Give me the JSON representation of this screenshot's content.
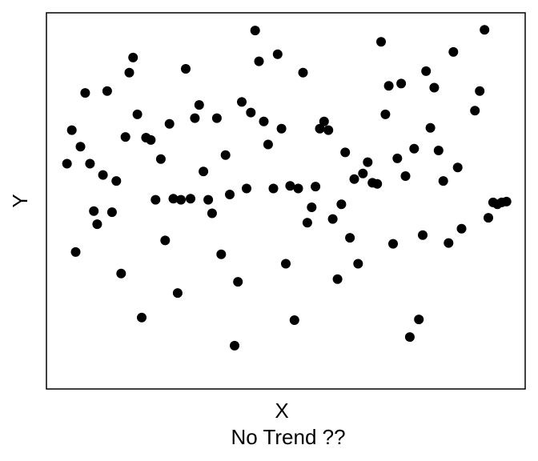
{
  "chart_data": {
    "type": "scatter",
    "title": "",
    "xlabel": "X",
    "ylabel": "Y",
    "caption": "No Trend ??",
    "xlim": [
      0,
      100
    ],
    "ylim": [
      0,
      100
    ],
    "grid": false,
    "legend": "none",
    "point_color": "#000000",
    "axes_color": "#000000",
    "series": [
      {
        "name": "points",
        "points": [
          {
            "x": 4.3,
            "y": 59.9
          },
          {
            "x": 5.3,
            "y": 68.8
          },
          {
            "x": 6.1,
            "y": 36.4
          },
          {
            "x": 7.1,
            "y": 64.4
          },
          {
            "x": 8.1,
            "y": 78.7
          },
          {
            "x": 9.1,
            "y": 59.9
          },
          {
            "x": 9.9,
            "y": 47.3
          },
          {
            "x": 10.6,
            "y": 43.8
          },
          {
            "x": 11.8,
            "y": 56.9
          },
          {
            "x": 12.7,
            "y": 79.2
          },
          {
            "x": 13.7,
            "y": 47.0
          },
          {
            "x": 14.6,
            "y": 55.3
          },
          {
            "x": 15.6,
            "y": 30.7
          },
          {
            "x": 16.5,
            "y": 67.0
          },
          {
            "x": 17.3,
            "y": 84.1
          },
          {
            "x": 18.1,
            "y": 88.1
          },
          {
            "x": 19.0,
            "y": 73.0
          },
          {
            "x": 19.9,
            "y": 19.0
          },
          {
            "x": 20.8,
            "y": 66.8
          },
          {
            "x": 21.8,
            "y": 66.2
          },
          {
            "x": 22.8,
            "y": 50.3
          },
          {
            "x": 23.9,
            "y": 61.1
          },
          {
            "x": 24.8,
            "y": 39.5
          },
          {
            "x": 25.7,
            "y": 70.5
          },
          {
            "x": 26.5,
            "y": 50.6
          },
          {
            "x": 27.4,
            "y": 25.5
          },
          {
            "x": 28.1,
            "y": 50.3
          },
          {
            "x": 29.1,
            "y": 85.1
          },
          {
            "x": 30.1,
            "y": 50.6
          },
          {
            "x": 31.0,
            "y": 72.0
          },
          {
            "x": 31.9,
            "y": 75.5
          },
          {
            "x": 32.8,
            "y": 57.8
          },
          {
            "x": 33.8,
            "y": 50.3
          },
          {
            "x": 34.6,
            "y": 46.7
          },
          {
            "x": 35.6,
            "y": 72.0
          },
          {
            "x": 36.5,
            "y": 35.8
          },
          {
            "x": 37.4,
            "y": 62.2
          },
          {
            "x": 38.3,
            "y": 51.7
          },
          {
            "x": 39.3,
            "y": 11.5
          },
          {
            "x": 40.0,
            "y": 28.5
          },
          {
            "x": 40.8,
            "y": 76.3
          },
          {
            "x": 41.8,
            "y": 53.3
          },
          {
            "x": 42.7,
            "y": 73.5
          },
          {
            "x": 43.6,
            "y": 95.3
          },
          {
            "x": 44.4,
            "y": 87.1
          },
          {
            "x": 45.4,
            "y": 71.1
          },
          {
            "x": 46.3,
            "y": 65.0
          },
          {
            "x": 47.4,
            "y": 53.3
          },
          {
            "x": 48.3,
            "y": 89.0
          },
          {
            "x": 49.1,
            "y": 69.2
          },
          {
            "x": 50.0,
            "y": 33.3
          },
          {
            "x": 50.9,
            "y": 54.0
          },
          {
            "x": 51.8,
            "y": 18.3
          },
          {
            "x": 52.6,
            "y": 53.3
          },
          {
            "x": 53.6,
            "y": 84.1
          },
          {
            "x": 54.5,
            "y": 44.2
          },
          {
            "x": 55.4,
            "y": 48.3
          },
          {
            "x": 56.2,
            "y": 53.8
          },
          {
            "x": 57.1,
            "y": 69.2
          },
          {
            "x": 58.0,
            "y": 71.1
          },
          {
            "x": 58.9,
            "y": 68.8
          },
          {
            "x": 59.8,
            "y": 45.2
          },
          {
            "x": 60.8,
            "y": 29.2
          },
          {
            "x": 61.6,
            "y": 49.1
          },
          {
            "x": 62.4,
            "y": 62.9
          },
          {
            "x": 63.4,
            "y": 40.2
          },
          {
            "x": 64.3,
            "y": 55.8
          },
          {
            "x": 65.1,
            "y": 33.3
          },
          {
            "x": 66.1,
            "y": 57.3
          },
          {
            "x": 67.1,
            "y": 60.3
          },
          {
            "x": 68.1,
            "y": 54.8
          },
          {
            "x": 69.1,
            "y": 54.5
          },
          {
            "x": 69.9,
            "y": 92.3
          },
          {
            "x": 70.8,
            "y": 73.0
          },
          {
            "x": 71.5,
            "y": 80.6
          },
          {
            "x": 72.4,
            "y": 38.6
          },
          {
            "x": 73.3,
            "y": 61.3
          },
          {
            "x": 74.1,
            "y": 81.2
          },
          {
            "x": 75.0,
            "y": 56.6
          },
          {
            "x": 75.9,
            "y": 13.8
          },
          {
            "x": 76.8,
            "y": 63.9
          },
          {
            "x": 77.8,
            "y": 18.5
          },
          {
            "x": 78.6,
            "y": 40.9
          },
          {
            "x": 79.3,
            "y": 84.5
          },
          {
            "x": 80.2,
            "y": 69.4
          },
          {
            "x": 81.0,
            "y": 80.1
          },
          {
            "x": 81.9,
            "y": 63.4
          },
          {
            "x": 82.9,
            "y": 55.3
          },
          {
            "x": 84.0,
            "y": 38.8
          },
          {
            "x": 85.0,
            "y": 89.6
          },
          {
            "x": 85.9,
            "y": 58.9
          },
          {
            "x": 86.7,
            "y": 42.6
          },
          {
            "x": 89.5,
            "y": 74.0
          },
          {
            "x": 90.5,
            "y": 79.2
          },
          {
            "x": 91.5,
            "y": 95.5
          },
          {
            "x": 92.3,
            "y": 45.5
          },
          {
            "x": 93.3,
            "y": 49.6
          },
          {
            "x": 94.2,
            "y": 49.1
          },
          {
            "x": 95.1,
            "y": 49.6
          },
          {
            "x": 96.1,
            "y": 49.8
          }
        ]
      }
    ]
  }
}
